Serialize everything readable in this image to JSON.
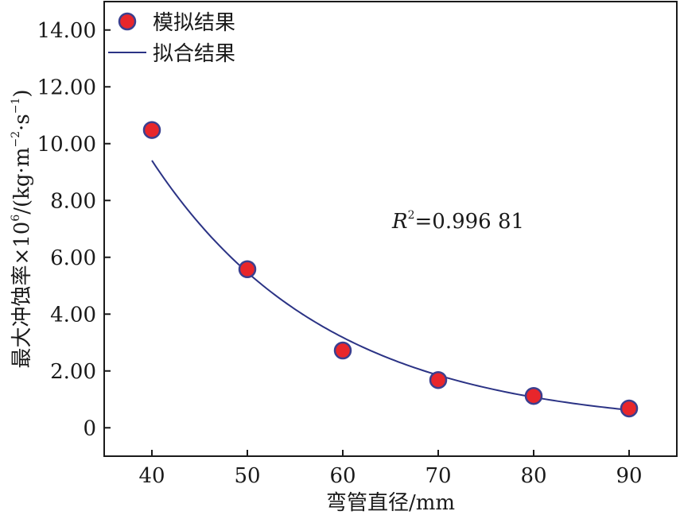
{
  "chart_data": {
    "type": "scatter",
    "x": [
      40,
      50,
      60,
      70,
      80,
      90
    ],
    "series": [
      {
        "name": "模拟结果",
        "kind": "points",
        "values": [
          10.48,
          5.58,
          2.72,
          1.68,
          1.12,
          0.68
        ],
        "color": "#e8262b",
        "edge_color": "#3b3f8f"
      },
      {
        "name": "拟合结果",
        "kind": "line",
        "fit": "exponential",
        "color": "#2b3385"
      }
    ],
    "xlabel": "弯管直径/mm",
    "ylabel_main": "最大冲蚀率×10",
    "ylabel_exp": "6",
    "ylabel_unit_a": "/(kg·m",
    "ylabel_unit_exp_a": "−2",
    "ylabel_unit_b": "·s",
    "ylabel_unit_exp_b": "−1",
    "ylabel_unit_c": ")",
    "xlim": [
      35,
      95
    ],
    "ylim": [
      -1,
      15
    ],
    "xticks": [
      "40",
      "50",
      "60",
      "70",
      "80",
      "90"
    ],
    "yticks": [
      "0",
      "2.00",
      "4.00",
      "6.00",
      "8.00",
      "10.00",
      "12.00",
      "14.00"
    ],
    "ytick_values": [
      0,
      2,
      4,
      6,
      8,
      10,
      12,
      14
    ],
    "xtick_values": [
      40,
      50,
      60,
      70,
      80,
      90
    ],
    "annotation": {
      "r_label": "R",
      "r_exp": "2",
      "r_value": "=0.996 81"
    },
    "legend": {
      "position": "top-left"
    },
    "grid": false
  }
}
